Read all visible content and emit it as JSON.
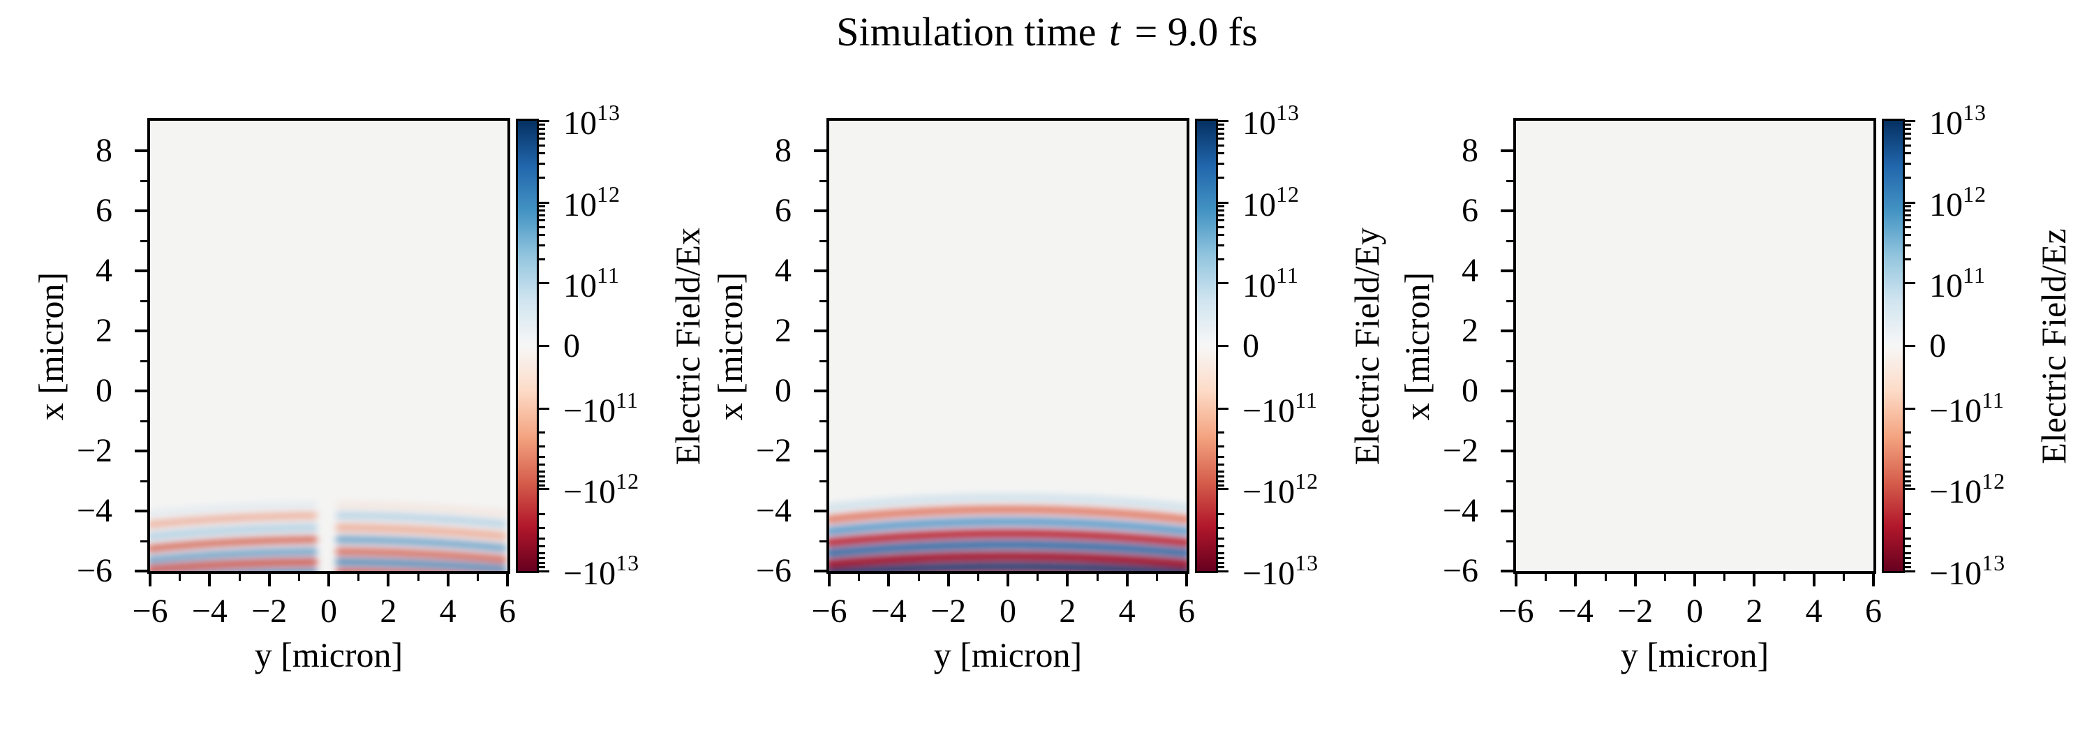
{
  "title": {
    "prefix": "Simulation time ",
    "variable": "t",
    "suffix": " = 9.0 fs"
  },
  "chart_data": {
    "type": "heatmap",
    "title": "Simulation time t = 9.0 fs",
    "simulation_time_fs": 9.0,
    "layout": "three panels side by side, each with its own symlog colorbar",
    "plot_background": "#f4f4f3",
    "x_axis": {
      "label": "y [micron]",
      "range": [
        -6,
        6
      ],
      "major_ticks": [
        -6,
        -4,
        -2,
        0,
        2,
        4,
        6
      ],
      "major_tick_labels": [
        "−6",
        "−4",
        "−2",
        "0",
        "2",
        "4",
        "6"
      ],
      "minor_ticks": [
        -5,
        -3,
        -1,
        1,
        3,
        5
      ]
    },
    "y_axis": {
      "label": "x [micron]",
      "range": [
        -6,
        9
      ],
      "major_ticks": [
        8,
        6,
        4,
        2,
        0,
        -2,
        -4,
        -6
      ],
      "major_tick_labels": [
        "8",
        "6",
        "4",
        "2",
        "0",
        "−2",
        "−4",
        "−6"
      ],
      "minor_ticks": [
        7,
        5,
        3,
        1,
        -1,
        -3,
        -5
      ]
    },
    "colorbar": {
      "scale": "symlog",
      "vmin": -10000000000000.0,
      "vmax": 10000000000000.0,
      "linthresh": 100000000000.0,
      "colormap": "RdBu",
      "decade_frac": 0.1814,
      "major_ticks": [
        {
          "frac": 0.0,
          "mantissa": "10",
          "exp": "13",
          "minus": false
        },
        {
          "frac": 0.1814,
          "mantissa": "10",
          "exp": "12",
          "minus": false
        },
        {
          "frac": 0.3612,
          "mantissa": "10",
          "exp": "11",
          "minus": false
        },
        {
          "frac": 0.5,
          "mantissa": "0",
          "exp": "",
          "minus": false
        },
        {
          "frac": 0.6388,
          "mantissa": "10",
          "exp": "11",
          "minus": true
        },
        {
          "frac": 0.8186,
          "mantissa": "10",
          "exp": "12",
          "minus": true
        },
        {
          "frac": 1.0,
          "mantissa": "10",
          "exp": "13",
          "minus": true
        }
      ],
      "gradient_stops": [
        "#053061",
        "#2166ac",
        "#4393c3",
        "#92c5de",
        "#d1e5f0",
        "#f7f7f7",
        "#fddbc7",
        "#f4a582",
        "#d6604d",
        "#b2182b",
        "#67001f"
      ]
    },
    "panels": [
      {
        "field": "Ex",
        "colorbar_label": "Electric Field/Ex",
        "pattern": "pale antisymmetric laser wave bands (sign flips across y=0, node at y=0), occupying x = -3.5 to -6 micron",
        "bands": [
          {
            "x": -3.8,
            "from": -6,
            "to": -0.35,
            "color": "#b9d5e9",
            "opacity": 0.3,
            "w": 0.22,
            "arch": 0.3
          },
          {
            "x": -3.8,
            "from": 0.35,
            "to": 6,
            "color": "#f0c3ae",
            "opacity": 0.3,
            "w": 0.22,
            "arch": 0.3
          },
          {
            "x": -4.15,
            "from": -6,
            "to": -0.35,
            "color": "#e8957a",
            "opacity": 0.7,
            "w": 0.24,
            "arch": 0.3
          },
          {
            "x": -4.15,
            "from": 0.35,
            "to": 6,
            "color": "#9cc4de",
            "opacity": 0.7,
            "w": 0.24,
            "arch": 0.3
          },
          {
            "x": -4.55,
            "from": -6,
            "to": -0.35,
            "color": "#9cc4de",
            "opacity": 0.75,
            "w": 0.25,
            "arch": 0.3
          },
          {
            "x": -4.55,
            "from": 0.35,
            "to": 6,
            "color": "#e8957a",
            "opacity": 0.75,
            "w": 0.25,
            "arch": 0.3
          },
          {
            "x": -4.95,
            "from": -6,
            "to": -0.35,
            "color": "#d05a44",
            "opacity": 0.85,
            "w": 0.26,
            "arch": 0.3
          },
          {
            "x": -4.95,
            "from": 0.35,
            "to": 6,
            "color": "#5e98c2",
            "opacity": 0.85,
            "w": 0.26,
            "arch": 0.3
          },
          {
            "x": -5.35,
            "from": -6,
            "to": -0.35,
            "color": "#5e98c2",
            "opacity": 0.85,
            "w": 0.26,
            "arch": 0.28
          },
          {
            "x": -5.35,
            "from": 0.35,
            "to": 6,
            "color": "#d05a44",
            "opacity": 0.85,
            "w": 0.26,
            "arch": 0.28
          },
          {
            "x": -5.7,
            "from": -6,
            "to": -0.35,
            "color": "#c94a3c",
            "opacity": 0.9,
            "w": 0.27,
            "arch": 0.24
          },
          {
            "x": -5.7,
            "from": 0.35,
            "to": 6,
            "color": "#4886b5",
            "opacity": 0.9,
            "w": 0.27,
            "arch": 0.24
          },
          {
            "x": -6.05,
            "from": -6,
            "to": -0.35,
            "color": "#4886b5",
            "opacity": 0.9,
            "w": 0.27,
            "arch": 0.2
          },
          {
            "x": -6.05,
            "from": 0.35,
            "to": 6,
            "color": "#c94a3c",
            "opacity": 0.9,
            "w": 0.27,
            "arch": 0.2
          }
        ]
      },
      {
        "field": "Ey",
        "colorbar_label": "Electric Field/Ey",
        "pattern": "strong symmetric curved laser wavefronts (alternating sign, arched), occupying x = -3.3 to -6 micron",
        "bands": [
          {
            "x": -3.55,
            "from": -6,
            "to": 6,
            "color": "#a9cde4",
            "opacity": 0.5,
            "w": 0.24,
            "arch": 0.34
          },
          {
            "x": -3.95,
            "from": -6,
            "to": 6,
            "color": "#dd6a50",
            "opacity": 0.88,
            "w": 0.27,
            "arch": 0.33
          },
          {
            "x": -4.35,
            "from": -6,
            "to": 6,
            "color": "#4f93c5",
            "opacity": 0.92,
            "w": 0.28,
            "arch": 0.32
          },
          {
            "x": -4.75,
            "from": -6,
            "to": 6,
            "color": "#bb2532",
            "opacity": 1.0,
            "w": 0.3,
            "arch": 0.3
          },
          {
            "x": -5.12,
            "from": -6,
            "to": 6,
            "color": "#2f6ea8",
            "opacity": 1.0,
            "w": 0.3,
            "arch": 0.28
          },
          {
            "x": -5.5,
            "from": -6,
            "to": 6,
            "color": "#a51429",
            "opacity": 1.0,
            "w": 0.32,
            "arch": 0.26
          },
          {
            "x": -5.86,
            "from": -6,
            "to": 6,
            "color": "#0e4578",
            "opacity": 1.0,
            "w": 0.32,
            "arch": 0.22
          },
          {
            "x": -6.18,
            "from": -6,
            "to": 6,
            "color": "#c23b30",
            "opacity": 0.9,
            "w": 0.28,
            "arch": 0.18
          }
        ]
      },
      {
        "field": "Ez",
        "colorbar_label": "Electric Field/Ez",
        "pattern": "zero field everywhere (uniform background)",
        "bands": []
      }
    ]
  }
}
